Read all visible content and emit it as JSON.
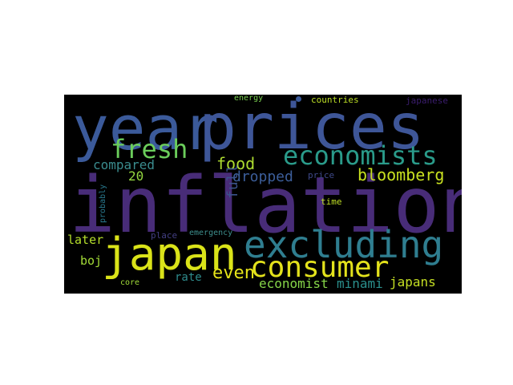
{
  "words": [
    {
      "text": "year",
      "color": "#3b5a9a"
    },
    {
      "text": "prices",
      "color": "#3e5698"
    },
    {
      "text": "inflation",
      "color": "#482c78"
    },
    {
      "text": "fresh",
      "color": "#6bcd5b"
    },
    {
      "text": "economists",
      "color": "#2a9b8a"
    },
    {
      "text": "japan",
      "color": "#dae319"
    },
    {
      "text": "excluding",
      "color": "#2f7e90"
    },
    {
      "text": "consumer",
      "color": "#e3e21c"
    },
    {
      "text": "food",
      "color": "#addc30"
    },
    {
      "text": "bloomberg",
      "color": "#c8e020"
    },
    {
      "text": "compared",
      "color": "#3a8c8e"
    },
    {
      "text": "dropped",
      "color": "#3c5e9a"
    },
    {
      "text": "20",
      "color": "#95d840"
    },
    {
      "text": "full",
      "color": "#3b528b"
    },
    {
      "text": "even",
      "color": "#e6e419"
    },
    {
      "text": "economist",
      "color": "#86d549"
    },
    {
      "text": "minami",
      "color": "#2a8f8c"
    },
    {
      "text": "japans",
      "color": "#c5df23"
    },
    {
      "text": "later",
      "color": "#b5de2b"
    },
    {
      "text": "boj",
      "color": "#a2da37"
    },
    {
      "text": "rate",
      "color": "#2e8b8c"
    },
    {
      "text": "core",
      "color": "#a0da39"
    },
    {
      "text": "place",
      "color": "#433f83"
    },
    {
      "text": "emergency",
      "color": "#3d8e8c"
    },
    {
      "text": "probably",
      "color": "#29798e"
    },
    {
      "text": "price",
      "color": "#3e4989"
    },
    {
      "text": "time",
      "color": "#bfdf25"
    },
    {
      "text": "energy",
      "color": "#7ad151"
    },
    {
      "text": "countries",
      "color": "#bddf26"
    },
    {
      "text": "japanese",
      "color": "#3b1d6e"
    }
  ]
}
